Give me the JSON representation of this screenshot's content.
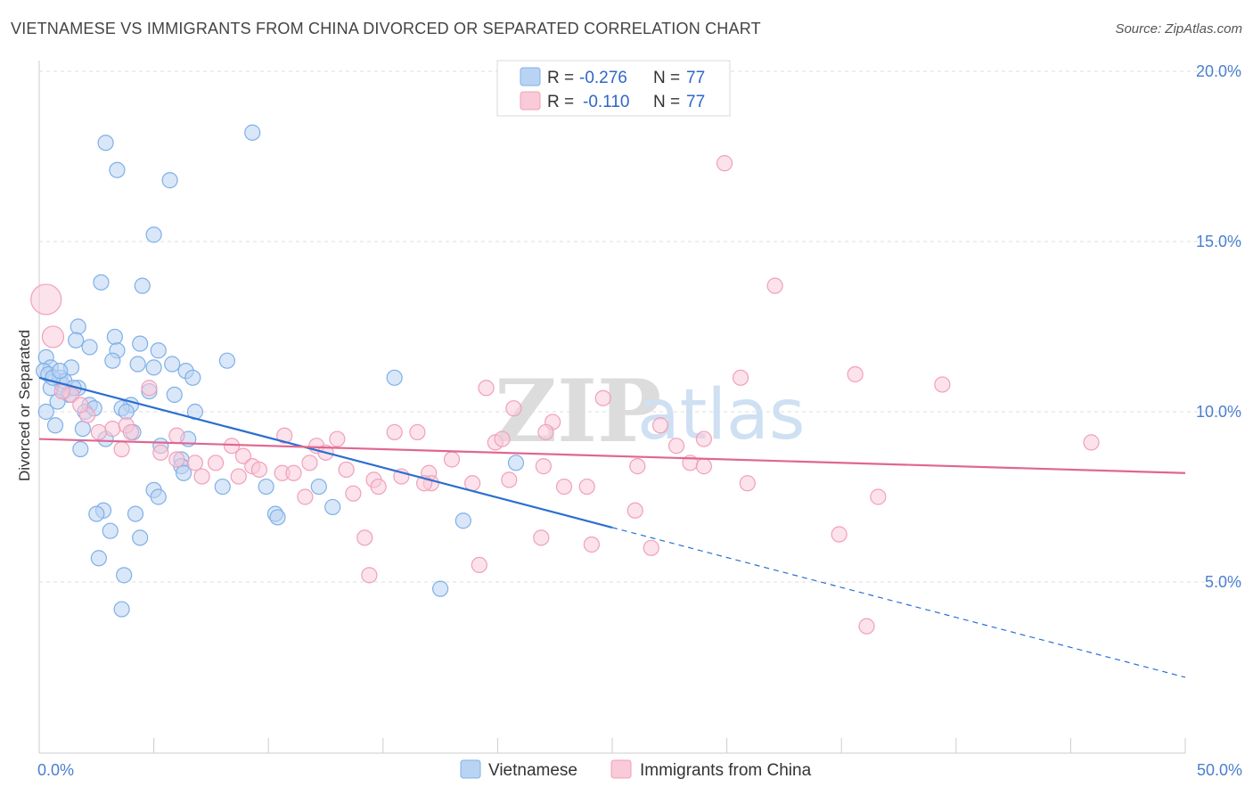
{
  "title": "VIETNAMESE VS IMMIGRANTS FROM CHINA DIVORCED OR SEPARATED CORRELATION CHART",
  "source": "Source: ZipAtlas.com",
  "watermark": {
    "zip": "ZIP",
    "atlas": "atlas"
  },
  "chart_data": {
    "type": "scatter",
    "ylabel": "Divorced or Separated",
    "xlim": [
      0,
      50
    ],
    "ylim": [
      0,
      21
    ],
    "x_tick_labels": [
      {
        "value": 0,
        "label": "0.0%"
      },
      {
        "value": 50,
        "label": "50.0%"
      }
    ],
    "y_tick_labels": [
      {
        "value": 5,
        "label": "5.0%"
      },
      {
        "value": 10,
        "label": "10.0%"
      },
      {
        "value": 15,
        "label": "15.0%"
      },
      {
        "value": 20,
        "label": "20.0%"
      }
    ],
    "x_minor_ticks": [
      0,
      5,
      10,
      15,
      20,
      25,
      30,
      35,
      40,
      45,
      50
    ],
    "grid": true,
    "legend_top": [
      {
        "r_label": "R = ",
        "r_value": "-0.276",
        "n_label": "N = ",
        "n_value": "77",
        "color": "#a8c8f0"
      },
      {
        "r_label": "R = ",
        "r_value": "-0.110",
        "n_label": "N = ",
        "n_value": "77",
        "color": "#f7b8cc"
      }
    ],
    "series": [
      {
        "name": "Vietnamese",
        "color": "#7fb0e8",
        "fill": "#b9d4f3",
        "trend_color": "#2a6fd0",
        "trend": {
          "x0": 0,
          "y0": 11.0,
          "x1": 25,
          "y1": 6.6,
          "dash_x1": 50,
          "dash_y1": 2.2
        },
        "points": [
          [
            2.9,
            17.9
          ],
          [
            3.4,
            17.1
          ],
          [
            5.7,
            16.8
          ],
          [
            9.3,
            18.2
          ],
          [
            5.0,
            15.2
          ],
          [
            2.7,
            13.8
          ],
          [
            4.5,
            13.7
          ],
          [
            1.7,
            12.5
          ],
          [
            3.3,
            12.2
          ],
          [
            1.6,
            12.1
          ],
          [
            4.4,
            12.0
          ],
          [
            2.2,
            11.9
          ],
          [
            3.4,
            11.8
          ],
          [
            5.2,
            11.8
          ],
          [
            0.3,
            11.6
          ],
          [
            3.2,
            11.5
          ],
          [
            8.2,
            11.5
          ],
          [
            4.3,
            11.4
          ],
          [
            5.8,
            11.4
          ],
          [
            0.5,
            11.3
          ],
          [
            1.4,
            11.3
          ],
          [
            5.0,
            11.3
          ],
          [
            0.2,
            11.2
          ],
          [
            6.4,
            11.2
          ],
          [
            0.4,
            11.1
          ],
          [
            0.9,
            11.0
          ],
          [
            6.7,
            11.0
          ],
          [
            15.5,
            11.0
          ],
          [
            1.0,
            10.8
          ],
          [
            0.5,
            10.7
          ],
          [
            1.7,
            10.7
          ],
          [
            1.1,
            10.6
          ],
          [
            1.3,
            10.5
          ],
          [
            4.8,
            10.6
          ],
          [
            5.9,
            10.5
          ],
          [
            0.8,
            10.3
          ],
          [
            2.2,
            10.2
          ],
          [
            4.0,
            10.2
          ],
          [
            3.6,
            10.1
          ],
          [
            2.0,
            10.0
          ],
          [
            6.8,
            10.0
          ],
          [
            0.7,
            9.6
          ],
          [
            1.9,
            9.5
          ],
          [
            4.1,
            9.4
          ],
          [
            2.9,
            9.2
          ],
          [
            6.5,
            9.2
          ],
          [
            5.3,
            9.0
          ],
          [
            1.8,
            8.9
          ],
          [
            6.2,
            8.6
          ],
          [
            6.2,
            8.4
          ],
          [
            6.3,
            8.2
          ],
          [
            20.8,
            8.5
          ],
          [
            8.0,
            7.8
          ],
          [
            9.9,
            7.8
          ],
          [
            12.2,
            7.8
          ],
          [
            5.0,
            7.7
          ],
          [
            5.2,
            7.5
          ],
          [
            12.8,
            7.2
          ],
          [
            2.8,
            7.1
          ],
          [
            2.5,
            7.0
          ],
          [
            4.2,
            7.0
          ],
          [
            10.3,
            7.0
          ],
          [
            10.4,
            6.9
          ],
          [
            18.5,
            6.8
          ],
          [
            3.1,
            6.5
          ],
          [
            4.4,
            6.3
          ],
          [
            2.6,
            5.7
          ],
          [
            3.7,
            5.2
          ],
          [
            17.5,
            4.8
          ],
          [
            3.6,
            4.2
          ],
          [
            0.3,
            10.0
          ],
          [
            1.1,
            10.9
          ],
          [
            2.4,
            10.1
          ],
          [
            0.6,
            11.0
          ],
          [
            3.8,
            10.0
          ],
          [
            1.5,
            10.7
          ],
          [
            0.9,
            11.2
          ]
        ]
      },
      {
        "name": "Immigrants from China",
        "color": "#f0a0ba",
        "fill": "#f9cad8",
        "trend_color": "#e06690",
        "trend": {
          "x0": 0,
          "y0": 9.2,
          "x1": 50,
          "y1": 8.2
        },
        "points": [
          [
            0.3,
            13.3
          ],
          [
            0.6,
            12.2
          ],
          [
            29.9,
            17.3
          ],
          [
            32.1,
            13.7
          ],
          [
            35.6,
            11.1
          ],
          [
            30.6,
            11.0
          ],
          [
            39.4,
            10.8
          ],
          [
            19.5,
            10.7
          ],
          [
            4.8,
            10.7
          ],
          [
            24.6,
            10.4
          ],
          [
            1.4,
            10.5
          ],
          [
            20.7,
            10.1
          ],
          [
            2.1,
            9.9
          ],
          [
            22.4,
            9.7
          ],
          [
            27.1,
            9.6
          ],
          [
            15.5,
            9.4
          ],
          [
            16.5,
            9.4
          ],
          [
            22.1,
            9.4
          ],
          [
            3.2,
            9.5
          ],
          [
            3.8,
            9.6
          ],
          [
            6.0,
            9.3
          ],
          [
            10.7,
            9.3
          ],
          [
            13.0,
            9.2
          ],
          [
            29.0,
            9.2
          ],
          [
            19.9,
            9.1
          ],
          [
            27.8,
            9.0
          ],
          [
            45.9,
            9.1
          ],
          [
            8.4,
            9.0
          ],
          [
            12.1,
            9.0
          ],
          [
            3.6,
            8.9
          ],
          [
            12.5,
            8.8
          ],
          [
            5.3,
            8.8
          ],
          [
            8.9,
            8.7
          ],
          [
            18.0,
            8.6
          ],
          [
            6.8,
            8.5
          ],
          [
            7.7,
            8.5
          ],
          [
            9.3,
            8.4
          ],
          [
            22.0,
            8.4
          ],
          [
            26.1,
            8.4
          ],
          [
            28.4,
            8.5
          ],
          [
            29.0,
            8.4
          ],
          [
            10.6,
            8.2
          ],
          [
            11.1,
            8.2
          ],
          [
            13.4,
            8.3
          ],
          [
            17.0,
            8.2
          ],
          [
            7.1,
            8.1
          ],
          [
            8.7,
            8.1
          ],
          [
            15.8,
            8.1
          ],
          [
            14.6,
            8.0
          ],
          [
            20.5,
            8.0
          ],
          [
            22.9,
            7.8
          ],
          [
            17.1,
            7.9
          ],
          [
            18.9,
            7.9
          ],
          [
            30.9,
            7.9
          ],
          [
            23.9,
            7.8
          ],
          [
            14.8,
            7.8
          ],
          [
            13.7,
            7.6
          ],
          [
            11.6,
            7.5
          ],
          [
            36.6,
            7.5
          ],
          [
            26.0,
            7.1
          ],
          [
            14.2,
            6.3
          ],
          [
            21.9,
            6.3
          ],
          [
            34.9,
            6.4
          ],
          [
            24.1,
            6.1
          ],
          [
            26.7,
            6.0
          ],
          [
            19.2,
            5.5
          ],
          [
            14.4,
            5.2
          ],
          [
            36.1,
            3.7
          ],
          [
            6.0,
            8.6
          ],
          [
            2.6,
            9.4
          ],
          [
            4.0,
            9.4
          ],
          [
            1.0,
            10.6
          ],
          [
            11.8,
            8.5
          ],
          [
            16.8,
            7.9
          ],
          [
            9.6,
            8.3
          ],
          [
            20.2,
            9.2
          ],
          [
            1.8,
            10.2
          ]
        ]
      }
    ]
  }
}
